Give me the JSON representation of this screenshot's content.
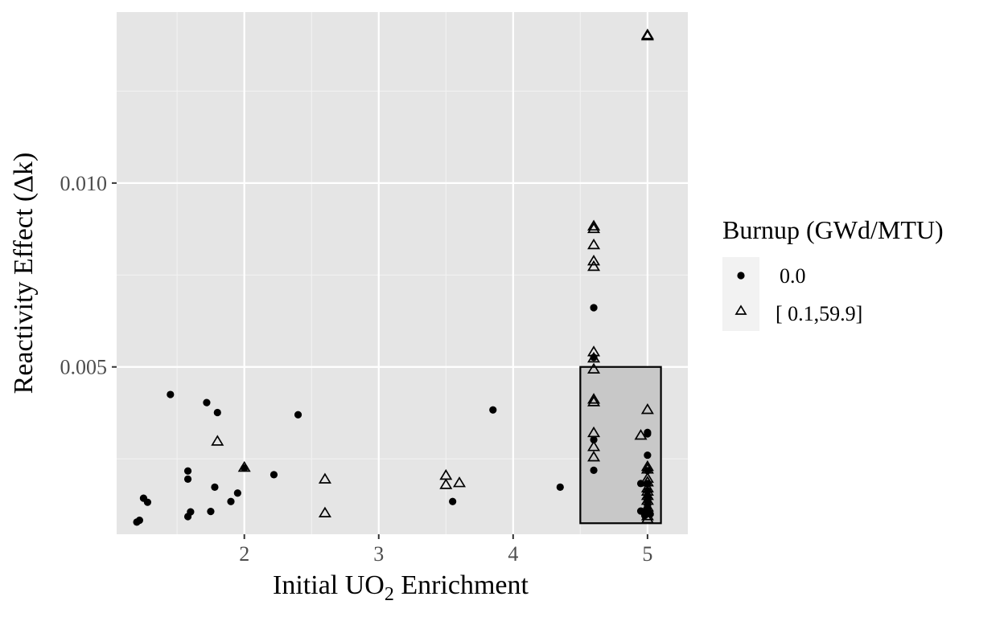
{
  "chart_data": {
    "type": "scatter",
    "xlabel": {
      "pre": "Initial UO",
      "sub": "2",
      "post": " Enrichment"
    },
    "ylabel": "Reactivity Effect (Δk)",
    "xlim": [
      1.05,
      5.3
    ],
    "ylim": [
      0.00045,
      0.01465
    ],
    "x_ticks": [
      2,
      3,
      4,
      5
    ],
    "x_tick_labels": [
      "2",
      "3",
      "4",
      "5"
    ],
    "y_ticks": [
      0.005,
      0.01
    ],
    "y_tick_labels": [
      "0.005",
      "0.010"
    ],
    "grid": true,
    "legend": {
      "title": "Burnup (GWd/MTU)",
      "position": "right",
      "entries": [
        {
          "label": "0.0",
          "shape": "circle"
        },
        {
          "label": "[ 0.1,59.9]",
          "shape": "triangle"
        }
      ]
    },
    "highlight_box": {
      "x": [
        4.5,
        5.1
      ],
      "y": [
        0.00075,
        0.005
      ]
    },
    "series": [
      {
        "name": "0.0",
        "shape": "circle",
        "points": [
          [
            1.2,
            0.00078
          ],
          [
            1.22,
            0.00083
          ],
          [
            1.25,
            0.00143
          ],
          [
            1.28,
            0.00132
          ],
          [
            1.45,
            0.00425
          ],
          [
            1.58,
            0.00217
          ],
          [
            1.58,
            0.00195
          ],
          [
            1.58,
            0.00093
          ],
          [
            1.6,
            0.00106
          ],
          [
            1.72,
            0.00403
          ],
          [
            1.75,
            0.00107
          ],
          [
            1.8,
            0.00376
          ],
          [
            1.78,
            0.00173
          ],
          [
            1.9,
            0.00134
          ],
          [
            1.95,
            0.00157
          ],
          [
            2.0,
            0.00225
          ],
          [
            2.22,
            0.00207
          ],
          [
            2.4,
            0.0037
          ],
          [
            3.55,
            0.00134
          ],
          [
            3.85,
            0.00383
          ],
          [
            4.35,
            0.00173
          ],
          [
            4.6,
            0.00661
          ],
          [
            4.6,
            0.00526
          ],
          [
            4.6,
            0.00302
          ],
          [
            4.6,
            0.00219
          ],
          [
            4.95,
            0.00183
          ],
          [
            4.95,
            0.00108
          ],
          [
            5.0,
            0.00322
          ],
          [
            5.0,
            0.00318
          ],
          [
            5.0,
            0.0026
          ],
          [
            5.0,
            0.00218
          ],
          [
            5.0,
            0.00183
          ],
          [
            5.0,
            0.00163
          ],
          [
            5.0,
            0.0015
          ],
          [
            5.0,
            0.00143
          ],
          [
            5.0,
            0.00134
          ],
          [
            5.0,
            0.00124
          ],
          [
            5.0,
            0.00117
          ],
          [
            5.0,
            0.0011
          ],
          [
            5.0,
            0.00103
          ],
          [
            4.98,
            0.00096
          ],
          [
            5.02,
            0.001
          ]
        ]
      },
      {
        "name": "[ 0.1,59.9]",
        "shape": "triangle",
        "points": [
          [
            1.8,
            0.00298
          ],
          [
            2.0,
            0.00227
          ],
          [
            2.6,
            0.00195
          ],
          [
            2.6,
            0.00103
          ],
          [
            3.5,
            0.00205
          ],
          [
            3.5,
            0.0018
          ],
          [
            3.6,
            0.00185
          ],
          [
            4.6,
            0.00883
          ],
          [
            4.6,
            0.00876
          ],
          [
            4.6,
            0.00832
          ],
          [
            4.6,
            0.00788
          ],
          [
            4.6,
            0.00773
          ],
          [
            4.6,
            0.00541
          ],
          [
            4.6,
            0.00524
          ],
          [
            4.6,
            0.00494
          ],
          [
            4.6,
            0.00412
          ],
          [
            4.6,
            0.00405
          ],
          [
            4.6,
            0.00321
          ],
          [
            4.6,
            0.00283
          ],
          [
            4.6,
            0.00255
          ],
          [
            4.95,
            0.00314
          ],
          [
            5.0,
            0.01403
          ],
          [
            5.0,
            0.014
          ],
          [
            5.0,
            0.00384
          ],
          [
            5.0,
            0.00229
          ],
          [
            5.0,
            0.00222
          ],
          [
            5.0,
            0.00197
          ],
          [
            5.0,
            0.00187
          ],
          [
            5.0,
            0.00171
          ],
          [
            5.0,
            0.00162
          ],
          [
            5.0,
            0.0015
          ],
          [
            5.0,
            0.00137
          ],
          [
            5.0,
            0.00119
          ],
          [
            5.0,
            0.00108
          ],
          [
            5.0,
            0.00095
          ],
          [
            5.0,
            0.00087
          ]
        ]
      }
    ]
  },
  "colors": {
    "panel": "#e5e5e5",
    "grid_major": "#ffffff",
    "grid_minor": "#f2f2f2",
    "points": "#000000",
    "box_fill": "#c8c8c8",
    "legend_key_bg": "#f2f2f2"
  }
}
